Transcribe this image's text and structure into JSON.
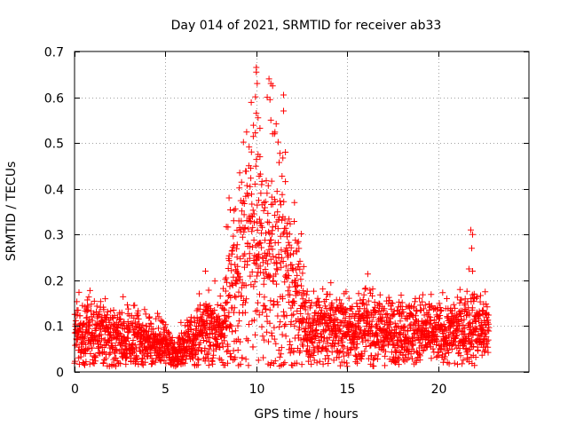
{
  "chart_data": {
    "type": "scatter",
    "title": "Day 014 of 2021, SRMTID for receiver ab33",
    "xlabel": "GPS time / hours",
    "ylabel": "SRMTID / TECUs",
    "xlim": [
      0,
      25
    ],
    "ylim": [
      0,
      0.7
    ],
    "xticks": [
      0,
      5,
      10,
      15,
      20
    ],
    "yticks": [
      0,
      0.1,
      0.2,
      0.3,
      0.4,
      0.5,
      0.6,
      0.7
    ],
    "xtick_labels": [
      "0",
      "5",
      "10",
      "15",
      "20"
    ],
    "ytick_labels": [
      "0",
      "0.1",
      "0.2",
      "0.3",
      "0.4",
      "0.5",
      "0.6",
      "0.7"
    ],
    "grid": true,
    "marker": "+",
    "color": "#ff0000",
    "series": [
      {
        "name": "ab33",
        "profile": {
          "description": "approximate typical level vs. time",
          "x": [
            0,
            1,
            2,
            3,
            4,
            5,
            5.5,
            6,
            6.5,
            7,
            7.5,
            8,
            8.5,
            9,
            9.5,
            10,
            10.5,
            11,
            11.5,
            12,
            12.5,
            13,
            14,
            15,
            16,
            17,
            18,
            19,
            20,
            21,
            21.8,
            22,
            22.8
          ],
          "y": [
            0.08,
            0.09,
            0.08,
            0.07,
            0.065,
            0.06,
            0.04,
            0.05,
            0.07,
            0.09,
            0.1,
            0.08,
            0.15,
            0.2,
            0.25,
            0.25,
            0.22,
            0.25,
            0.22,
            0.18,
            0.12,
            0.09,
            0.1,
            0.09,
            0.1,
            0.09,
            0.09,
            0.09,
            0.08,
            0.09,
            0.1,
            0.1,
            0.09
          ]
        },
        "highlights": [
          {
            "x": 10.0,
            "y": 0.665
          },
          {
            "x": 10.0,
            "y": 0.655
          },
          {
            "x": 10.05,
            "y": 0.63
          },
          {
            "x": 10.7,
            "y": 0.64
          },
          {
            "x": 10.8,
            "y": 0.63
          },
          {
            "x": 10.9,
            "y": 0.625
          },
          {
            "x": 10.6,
            "y": 0.6
          },
          {
            "x": 10.75,
            "y": 0.595
          },
          {
            "x": 11.5,
            "y": 0.605
          },
          {
            "x": 10.0,
            "y": 0.565
          },
          {
            "x": 10.1,
            "y": 0.555
          },
          {
            "x": 11.5,
            "y": 0.57
          },
          {
            "x": 10.8,
            "y": 0.55
          },
          {
            "x": 10.9,
            "y": 0.52
          },
          {
            "x": 11.0,
            "y": 0.52
          },
          {
            "x": 11.6,
            "y": 0.48
          },
          {
            "x": 10.1,
            "y": 0.475
          },
          {
            "x": 10.2,
            "y": 0.47
          },
          {
            "x": 21.8,
            "y": 0.31
          },
          {
            "x": 21.9,
            "y": 0.3
          },
          {
            "x": 21.85,
            "y": 0.27
          },
          {
            "x": 21.7,
            "y": 0.225
          },
          {
            "x": 21.9,
            "y": 0.22
          },
          {
            "x": 8.5,
            "y": 0.38
          },
          {
            "x": 7.2,
            "y": 0.22
          },
          {
            "x": 12.1,
            "y": 0.37
          }
        ]
      }
    ]
  }
}
